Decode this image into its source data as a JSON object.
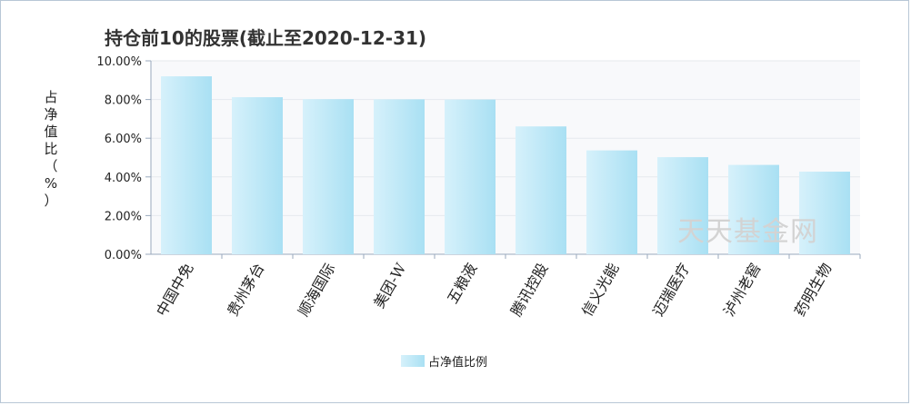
{
  "chart_data": {
    "type": "bar",
    "title": "持仓前10的股票(截止至2020-12-31)",
    "ylabel": "占净值比（%）",
    "categories": [
      "中国中免",
      "贵州茅台",
      "顺海国际",
      "美团-W",
      "五粮液",
      "腾讯控股",
      "信义光能",
      "迈瑞医疗",
      "泸州老窖",
      "药明生物"
    ],
    "series": [
      {
        "name": "占净值比例",
        "values": [
          9.2,
          8.12,
          8.02,
          8.01,
          8.0,
          6.61,
          5.37,
          5.02,
          4.62,
          4.27
        ]
      }
    ],
    "ylim": [
      0,
      10
    ],
    "yticks": [
      "0.00%",
      "2.00%",
      "4.00%",
      "6.00%",
      "8.00%",
      "10.00%"
    ],
    "grid": true,
    "legend": "bottom-center",
    "colors": {
      "bar_light": "#d6f1fb",
      "bar_dark": "#a9e0f3",
      "plot_bg": "#f8f9fb",
      "grid": "#e6e9ee",
      "axis": "#9aa9bd"
    }
  },
  "watermark": "天天基金网"
}
